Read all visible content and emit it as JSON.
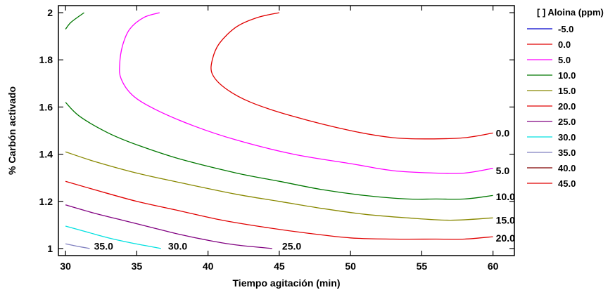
{
  "chart_data": {
    "type": "contour",
    "xlabel": "Tiempo agitación (min)",
    "ylabel": "% Carbón activado",
    "xlim": [
      29.5,
      61.5
    ],
    "ylim": [
      0.97,
      2.03
    ],
    "x_ticks": [
      30,
      35,
      40,
      45,
      50,
      55,
      60
    ],
    "y_ticks": [
      1,
      1.2,
      1.4,
      1.6,
      1.8,
      2
    ],
    "x_tick_labels": [
      "30",
      "35",
      "40",
      "45",
      "50",
      "55",
      "60"
    ],
    "y_tick_labels": [
      "1",
      "1.2",
      "1.4",
      "1.6",
      "1.8",
      "2"
    ],
    "grid": false,
    "legend_position": "right",
    "legend_title": "[ ] Aloina (ppm)",
    "legend": [
      {
        "label": "-5.0",
        "color": "#0000cc"
      },
      {
        "label": "0.0",
        "color": "#e00000"
      },
      {
        "label": "5.0",
        "color": "#ff00ff"
      },
      {
        "label": "10.0",
        "color": "#007700"
      },
      {
        "label": "15.0",
        "color": "#888800"
      },
      {
        "label": "20.0",
        "color": "#e00000"
      },
      {
        "label": "25.0",
        "color": "#800080"
      },
      {
        "label": "30.0",
        "color": "#00e0e0"
      },
      {
        "label": "35.0",
        "color": "#8080c0"
      },
      {
        "label": "40.0",
        "color": "#800000"
      },
      {
        "label": "45.0",
        "color": "#e00000"
      }
    ],
    "series": [
      {
        "name": "0.0",
        "color": "#e00000",
        "x": [
          45,
          43.5,
          42,
          40.8,
          40.3,
          40.3,
          41.2,
          43,
          46,
          50,
          53,
          55.5,
          58,
          60
        ],
        "y": [
          2.0,
          1.98,
          1.94,
          1.87,
          1.8,
          1.74,
          1.68,
          1.62,
          1.56,
          1.5,
          1.47,
          1.465,
          1.47,
          1.49
        ]
      },
      {
        "name": "5.0",
        "color": "#ff00ff",
        "x": [
          36.6,
          35.5,
          34.5,
          34.0,
          33.8,
          33.9,
          34.7,
          36.3,
          39,
          42,
          46,
          50,
          53,
          56,
          58,
          60
        ],
        "y": [
          2.0,
          1.98,
          1.93,
          1.86,
          1.78,
          1.72,
          1.65,
          1.59,
          1.52,
          1.46,
          1.4,
          1.36,
          1.33,
          1.32,
          1.32,
          1.34
        ]
      },
      {
        "name": "10.0 top",
        "color": "#007700",
        "x": [
          30.0,
          30.4,
          31.3
        ],
        "y": [
          1.93,
          1.96,
          2.0
        ]
      },
      {
        "name": "10.0",
        "color": "#007700",
        "x": [
          30,
          31,
          33,
          35,
          38,
          42,
          45,
          48,
          51,
          54,
          56,
          58,
          60
        ],
        "y": [
          1.62,
          1.56,
          1.49,
          1.44,
          1.38,
          1.32,
          1.285,
          1.25,
          1.225,
          1.21,
          1.21,
          1.21,
          1.225
        ]
      },
      {
        "name": "15.0",
        "color": "#888800",
        "x": [
          30,
          32,
          35,
          38,
          42,
          45,
          48,
          51,
          54,
          57,
          60
        ],
        "y": [
          1.41,
          1.37,
          1.32,
          1.28,
          1.23,
          1.2,
          1.17,
          1.145,
          1.13,
          1.12,
          1.13
        ]
      },
      {
        "name": "20.0",
        "color": "#e00000",
        "x": [
          30,
          32,
          35,
          38,
          41,
          44,
          47,
          50,
          53,
          56,
          58,
          60
        ],
        "y": [
          1.285,
          1.25,
          1.2,
          1.16,
          1.12,
          1.09,
          1.065,
          1.045,
          1.04,
          1.04,
          1.04,
          1.05
        ]
      },
      {
        "name": "25.0",
        "color": "#800080",
        "x": [
          30,
          32,
          34,
          36,
          38,
          40,
          42,
          44.5
        ],
        "y": [
          1.185,
          1.15,
          1.12,
          1.09,
          1.06,
          1.035,
          1.015,
          1.0
        ]
      },
      {
        "name": "30.0",
        "color": "#00e0e0",
        "x": [
          30,
          31.5,
          33,
          34.5,
          36.7
        ],
        "y": [
          1.095,
          1.07,
          1.045,
          1.025,
          1.0
        ]
      },
      {
        "name": "35.0",
        "color": "#8080c0",
        "x": [
          30.0,
          30.8,
          31.7
        ],
        "y": [
          1.02,
          1.01,
          1.0
        ]
      }
    ],
    "contour_labels": [
      {
        "text": "0.0",
        "x": 60.2,
        "y": 1.49
      },
      {
        "text": "5.0",
        "x": 60.2,
        "y": 1.33
      },
      {
        "text": "10.0",
        "x": 60.2,
        "y": 1.22
      },
      {
        "text": "15.0",
        "x": 60.2,
        "y": 1.12
      },
      {
        "text": "20.0",
        "x": 60.2,
        "y": 1.045
      },
      {
        "text": "25.0",
        "x": 45.2,
        "y": 1.01
      },
      {
        "text": "30.0",
        "x": 37.2,
        "y": 1.01
      },
      {
        "text": "35.0",
        "x": 32.0,
        "y": 1.01
      }
    ]
  }
}
